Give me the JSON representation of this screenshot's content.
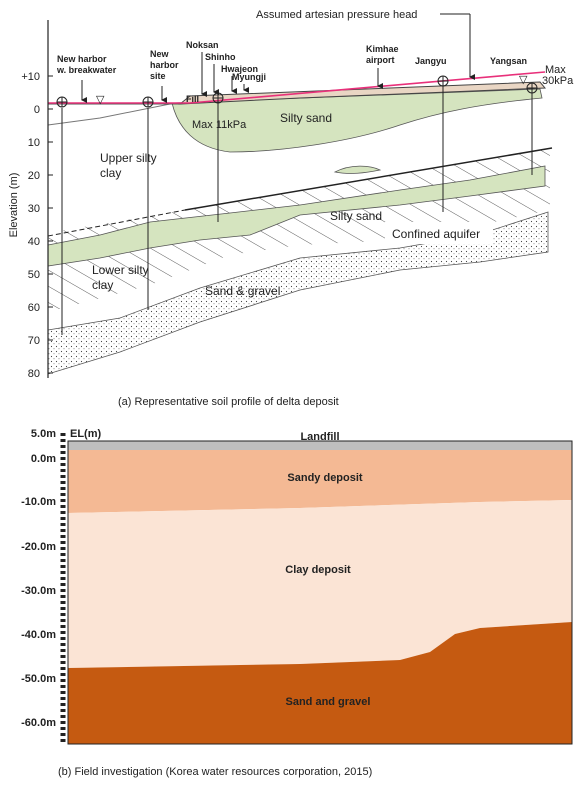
{
  "panel_a": {
    "axis_label": "Elevation (m)",
    "ticks": [
      "+10",
      "0",
      "10",
      "20",
      "30",
      "40",
      "50",
      "60",
      "70",
      "80"
    ],
    "pressure_head": "Assumed artesian pressure head",
    "sites": [
      {
        "lines": [
          "New harbor",
          "w. breakwater"
        ]
      },
      {
        "lines": [
          "New",
          "harbor",
          "site"
        ]
      },
      {
        "lines": [
          "Noksan"
        ]
      },
      {
        "lines": [
          "Shinho"
        ]
      },
      {
        "lines": [
          "Hwajeon"
        ]
      },
      {
        "lines": [
          "Myungji"
        ]
      },
      {
        "lines": [
          "Kimhae",
          "airport"
        ]
      },
      {
        "lines": [
          "Jangyu"
        ]
      },
      {
        "lines": [
          "Yangsan"
        ]
      }
    ],
    "fill": "Fill",
    "max_left": "Max 11kPa",
    "max_right": [
      "Max",
      "30kPa"
    ],
    "silty_sand_upper": "Silty sand",
    "upper_clay": [
      "Upper silty",
      "clay"
    ],
    "silty_sand_lower": "Silty sand",
    "confined": "Confined aquifer",
    "lower_clay": [
      "Lower silty",
      "clay"
    ],
    "gravel": "Sand & gravel",
    "caption": "(a)  Representative soil profile of delta deposit"
  },
  "panel_b": {
    "unit": "EL(m)",
    "ticks": [
      "5.0m",
      "0.0m",
      "-10.0m",
      "-20.0m",
      "-30.0m",
      "-40.0m",
      "-50.0m",
      "-60.0m"
    ],
    "landfill": "Landfill",
    "sandy": "Sandy deposit",
    "clay": "Clay deposit",
    "gravel": "Sand and gravel",
    "caption": "(b)  Field investigation (Korea water resources corporation, 2015)"
  }
}
